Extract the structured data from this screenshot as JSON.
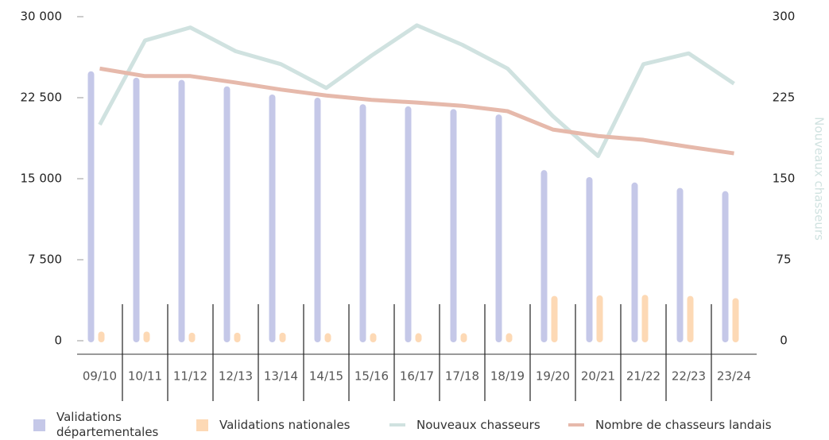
{
  "chart_data": {
    "type": "bar",
    "y2label": "Nouveaux chasseurs",
    "categories": [
      "09/10",
      "10/11",
      "11/12",
      "12/13",
      "13/14",
      "14/15",
      "15/16",
      "16/17",
      "17/18",
      "18/19",
      "19/20",
      "20/21",
      "21/22",
      "22/23",
      "23/24"
    ],
    "series": [
      {
        "name": "Validations départementales",
        "type": "bar",
        "color": "#c5c8e8",
        "values": [
          24800,
          24200,
          24000,
          23400,
          22650,
          22350,
          21750,
          21550,
          21300,
          20800,
          15650,
          15000,
          14500,
          14000,
          13700
        ]
      },
      {
        "name": "Validations nationales",
        "type": "bar",
        "color": "#fdd9b5",
        "values": [
          700,
          700,
          600,
          600,
          600,
          550,
          550,
          550,
          550,
          550,
          4000,
          4050,
          4100,
          4000,
          3800
        ]
      },
      {
        "name": "Nouveaux chasseurs",
        "type": "line",
        "axis": "y2",
        "color": "#d0e2e0",
        "values": [
          200,
          278,
          290,
          268,
          256,
          234,
          264,
          292,
          274,
          252,
          208,
          171,
          256,
          266,
          238
        ]
      },
      {
        "name": "Nombre de chasseurs landais",
        "type": "line",
        "color": "#e6b9ab",
        "values": [
          25200,
          24500,
          24500,
          23900,
          23250,
          22700,
          22300,
          22050,
          21750,
          21250,
          19550,
          18950,
          18600,
          17950,
          17350
        ]
      }
    ],
    "ylim": [
      0,
      30000
    ],
    "yticks": [
      0,
      {
        "value": 7500,
        "label": "7 500"
      },
      {
        "value": 15000,
        "label": "15 000"
      },
      {
        "value": 22500,
        "label": "22 500"
      },
      {
        "value": 30000,
        "label": "30 000"
      }
    ],
    "y2lim": [
      0,
      300
    ],
    "y2ticks": [
      0,
      75,
      150,
      225,
      300
    ],
    "grid": true
  }
}
